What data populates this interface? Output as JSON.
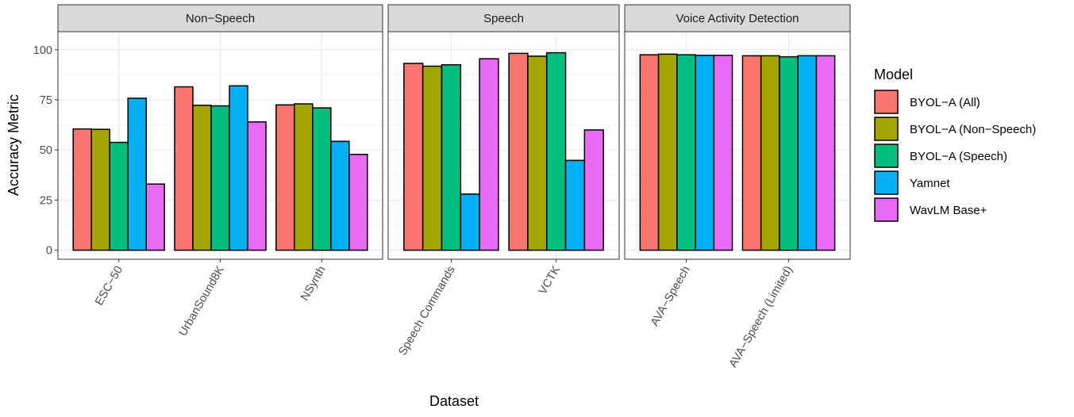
{
  "chart_data": {
    "type": "bar",
    "xlabel": "Dataset",
    "ylabel": "Accuracy Metric",
    "ylim": [
      -4.5,
      109
    ],
    "yticks": [
      0,
      25,
      50,
      75,
      100
    ],
    "grid": true,
    "legend": {
      "title": "Model",
      "placement": "right",
      "entries": [
        {
          "name": "BYOL−A (All)",
          "color": "#F8766D"
        },
        {
          "name": "BYOL−A (Non−Speech)",
          "color": "#A3A500"
        },
        {
          "name": "BYOL−A (Speech)",
          "color": "#00BF7D"
        },
        {
          "name": "Yamnet",
          "color": "#00B0F6"
        },
        {
          "name": "WavLM Base+",
          "color": "#E76BF3"
        }
      ]
    },
    "panels": [
      {
        "title": "Non−Speech",
        "categories": [
          "ESC−50",
          "UrbanSound8K",
          "NSynth"
        ],
        "series": [
          {
            "name": "BYOL−A (All)",
            "values": [
              60.5,
              81.5,
              72.5
            ]
          },
          {
            "name": "BYOL−A (Non−Speech)",
            "values": [
              60.3,
              72.3,
              73.0
            ]
          },
          {
            "name": "BYOL−A (Speech)",
            "values": [
              53.8,
              72.0,
              71.0
            ]
          },
          {
            "name": "Yamnet",
            "values": [
              75.8,
              82.0,
              54.3
            ]
          },
          {
            "name": "WavLM Base+",
            "values": [
              33.0,
              64.0,
              47.8
            ]
          }
        ]
      },
      {
        "title": "Speech",
        "categories": [
          "Speech Commands",
          "VCTK"
        ],
        "series": [
          {
            "name": "BYOL−A (All)",
            "values": [
              93.2,
              98.2
            ]
          },
          {
            "name": "BYOL−A (Non−Speech)",
            "values": [
              91.8,
              96.8
            ]
          },
          {
            "name": "BYOL−A (Speech)",
            "values": [
              92.5,
              98.5
            ]
          },
          {
            "name": "Yamnet",
            "values": [
              28.0,
              44.8
            ]
          },
          {
            "name": "WavLM Base+",
            "values": [
              95.5,
              60.0
            ]
          }
        ]
      },
      {
        "title": "Voice Activity Detection",
        "categories": [
          "AVA−Speech",
          "AVA−Speech (Limited)"
        ],
        "series": [
          {
            "name": "BYOL−A (All)",
            "values": [
              97.5,
              97.0
            ]
          },
          {
            "name": "BYOL−A (Non−Speech)",
            "values": [
              97.8,
              97.0
            ]
          },
          {
            "name": "BYOL−A (Speech)",
            "values": [
              97.5,
              96.5
            ]
          },
          {
            "name": "Yamnet",
            "values": [
              97.2,
              97.0
            ]
          },
          {
            "name": "WavLM Base+",
            "values": [
              97.2,
              97.0
            ]
          }
        ]
      }
    ]
  }
}
